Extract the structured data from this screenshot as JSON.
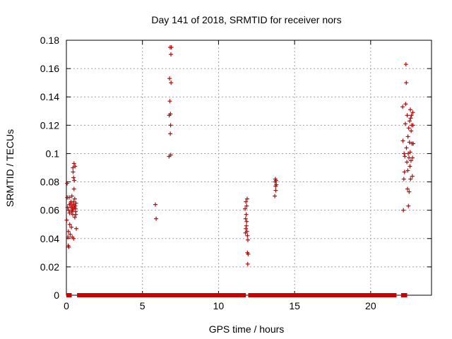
{
  "chart_data": {
    "type": "scatter",
    "title": "Day 141 of 2018, SRMTID for receiver nors",
    "xlabel": "GPS time / hours",
    "ylabel": "SRMTID / TECUs",
    "xlim": [
      0,
      24
    ],
    "ylim": [
      0,
      0.18
    ],
    "x_ticks": [
      0,
      5,
      10,
      15,
      20
    ],
    "x_tick_labels": [
      "0",
      "5",
      "10",
      "15",
      "20"
    ],
    "y_ticks": [
      0,
      0.02,
      0.04,
      0.06,
      0.08,
      0.1,
      0.12,
      0.14,
      0.16,
      0.18
    ],
    "y_tick_labels": [
      "0",
      "0.02",
      "0.04",
      "0.06",
      "0.08",
      "0.1",
      "0.12",
      "0.14",
      "0.16",
      "0.18"
    ],
    "grid": true,
    "legend": "none",
    "marker": "+",
    "color": "#cc0000",
    "baseline_segments": [
      [
        0.0,
        0.35
      ],
      [
        0.7,
        11.8
      ],
      [
        11.95,
        21.7
      ],
      [
        22.0,
        22.4
      ]
    ],
    "series": [
      {
        "points": [
          [
            0.02,
            0.053
          ],
          [
            0.05,
            0.079
          ],
          [
            0.06,
            0.069
          ],
          [
            0.08,
            0.062
          ],
          [
            0.1,
            0.041
          ],
          [
            0.12,
            0.035
          ],
          [
            0.13,
            0.045
          ],
          [
            0.15,
            0.06
          ],
          [
            0.16,
            0.034
          ],
          [
            0.18,
            0.069
          ],
          [
            0.2,
            0.064
          ],
          [
            0.21,
            0.058
          ],
          [
            0.22,
            0.05
          ],
          [
            0.25,
            0.043
          ],
          [
            0.28,
            0.065
          ],
          [
            0.3,
            0.062
          ],
          [
            0.31,
            0.066
          ],
          [
            0.33,
            0.048
          ],
          [
            0.35,
            0.059
          ],
          [
            0.36,
            0.07
          ],
          [
            0.38,
            0.041
          ],
          [
            0.38,
            0.063
          ],
          [
            0.4,
            0.06
          ],
          [
            0.42,
            0.057
          ],
          [
            0.43,
            0.09
          ],
          [
            0.44,
            0.087
          ],
          [
            0.45,
            0.061
          ],
          [
            0.46,
            0.066
          ],
          [
            0.47,
            0.083
          ],
          [
            0.48,
            0.064
          ],
          [
            0.48,
            0.04
          ],
          [
            0.5,
            0.093
          ],
          [
            0.5,
            0.075
          ],
          [
            0.52,
            0.081
          ],
          [
            0.53,
            0.062
          ],
          [
            0.55,
            0.068
          ],
          [
            0.55,
            0.055
          ],
          [
            0.57,
            0.091
          ],
          [
            0.58,
            0.063
          ],
          [
            0.6,
            0.061
          ],
          [
            0.61,
            0.059
          ],
          [
            0.62,
            0.057
          ],
          [
            0.63,
            0.065
          ],
          [
            0.65,
            0.047
          ],
          [
            5.85,
            0.064
          ],
          [
            5.9,
            0.054
          ],
          [
            6.75,
            0.098
          ],
          [
            6.76,
            0.127
          ],
          [
            6.78,
            0.153
          ],
          [
            6.8,
            0.137
          ],
          [
            6.82,
            0.175
          ],
          [
            6.83,
            0.114
          ],
          [
            6.84,
            0.128
          ],
          [
            6.85,
            0.12
          ],
          [
            6.86,
            0.099
          ],
          [
            6.87,
            0.17
          ],
          [
            6.88,
            0.15
          ],
          [
            6.9,
            0.175
          ],
          [
            11.75,
            0.061
          ],
          [
            11.77,
            0.044
          ],
          [
            11.78,
            0.054
          ],
          [
            11.8,
            0.047
          ],
          [
            11.8,
            0.066
          ],
          [
            11.82,
            0.057
          ],
          [
            11.83,
            0.049
          ],
          [
            11.85,
            0.063
          ],
          [
            11.85,
            0.052
          ],
          [
            11.87,
            0.045
          ],
          [
            11.88,
            0.068
          ],
          [
            11.9,
            0.042
          ],
          [
            11.9,
            0.03
          ],
          [
            11.92,
            0.022
          ],
          [
            11.93,
            0.039
          ],
          [
            11.95,
            0.029
          ],
          [
            13.7,
            0.07
          ],
          [
            13.72,
            0.08
          ],
          [
            13.73,
            0.082
          ],
          [
            13.75,
            0.077
          ],
          [
            13.76,
            0.074
          ],
          [
            13.78,
            0.081
          ],
          [
            13.8,
            0.078
          ],
          [
            22.1,
            0.133
          ],
          [
            22.12,
            0.109
          ],
          [
            22.15,
            0.06
          ],
          [
            22.18,
            0.082
          ],
          [
            22.2,
            0.1
          ],
          [
            22.22,
            0.087
          ],
          [
            22.25,
            0.098
          ],
          [
            22.28,
            0.121
          ],
          [
            22.3,
            0.135
          ],
          [
            22.32,
            0.163
          ],
          [
            22.34,
            0.15
          ],
          [
            22.35,
            0.104
          ],
          [
            22.38,
            0.094
          ],
          [
            22.4,
            0.127
          ],
          [
            22.42,
            0.075
          ],
          [
            22.44,
            0.088
          ],
          [
            22.45,
            0.112
          ],
          [
            22.47,
            0.1
          ],
          [
            22.48,
            0.063
          ],
          [
            22.5,
            0.118
          ],
          [
            22.52,
            0.097
          ],
          [
            22.53,
            0.073
          ],
          [
            22.55,
            0.108
          ],
          [
            22.56,
            0.123
          ],
          [
            22.58,
            0.091
          ],
          [
            22.6,
            0.101
          ],
          [
            22.61,
            0.131
          ],
          [
            22.62,
            0.082
          ],
          [
            22.63,
            0.125
          ],
          [
            22.65,
            0.095
          ],
          [
            22.66,
            0.116
          ],
          [
            22.68,
            0.127
          ],
          [
            22.7,
            0.12
          ],
          [
            22.72,
            0.107
          ],
          [
            22.74,
            0.084
          ],
          [
            22.75,
            0.097
          ],
          [
            22.77,
            0.129
          ],
          [
            22.78,
            0.12
          ],
          [
            22.8,
            0.107
          ]
        ]
      }
    ]
  }
}
